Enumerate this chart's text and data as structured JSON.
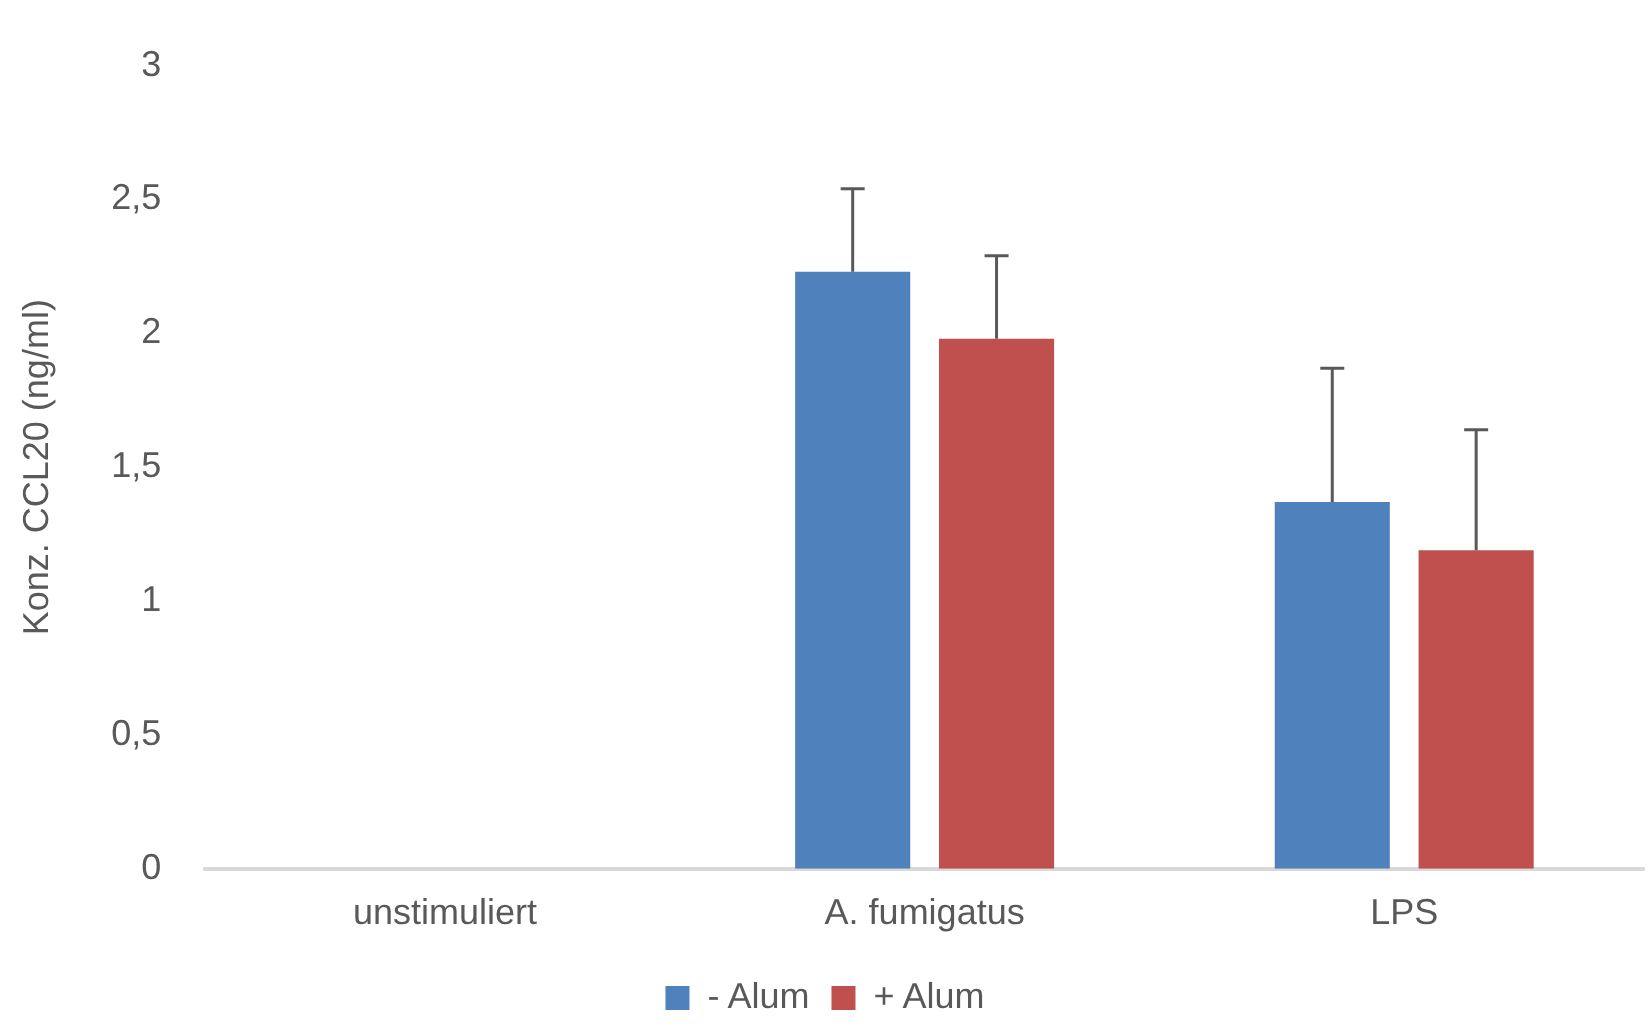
{
  "chart_data": {
    "type": "bar",
    "ylabel": "Konz. CCL20 (ng/ml)",
    "categories": [
      "unstimuliert",
      "A. fumigatus",
      "LPS"
    ],
    "series": [
      {
        "name": "- Alum",
        "color": "#4f81bd",
        "values": [
          null,
          2.23,
          1.37
        ],
        "errors": [
          null,
          [
            2.23,
            2.54
          ],
          [
            1.37,
            1.87
          ]
        ]
      },
      {
        "name": "+ Alum",
        "color": "#c0504d",
        "values": [
          null,
          1.98,
          1.19
        ],
        "errors": [
          null,
          [
            1.98,
            2.29
          ],
          [
            1.19,
            1.64
          ]
        ]
      }
    ],
    "ylim": [
      0,
      3
    ],
    "yticks": [
      0,
      {
        "value": 0.5,
        "label": "0,5"
      },
      1,
      {
        "value": 1.5,
        "label": "1,5"
      },
      2,
      {
        "value": 2.5,
        "label": "2,5"
      },
      3
    ],
    "grid": false,
    "legend": "bottom"
  }
}
